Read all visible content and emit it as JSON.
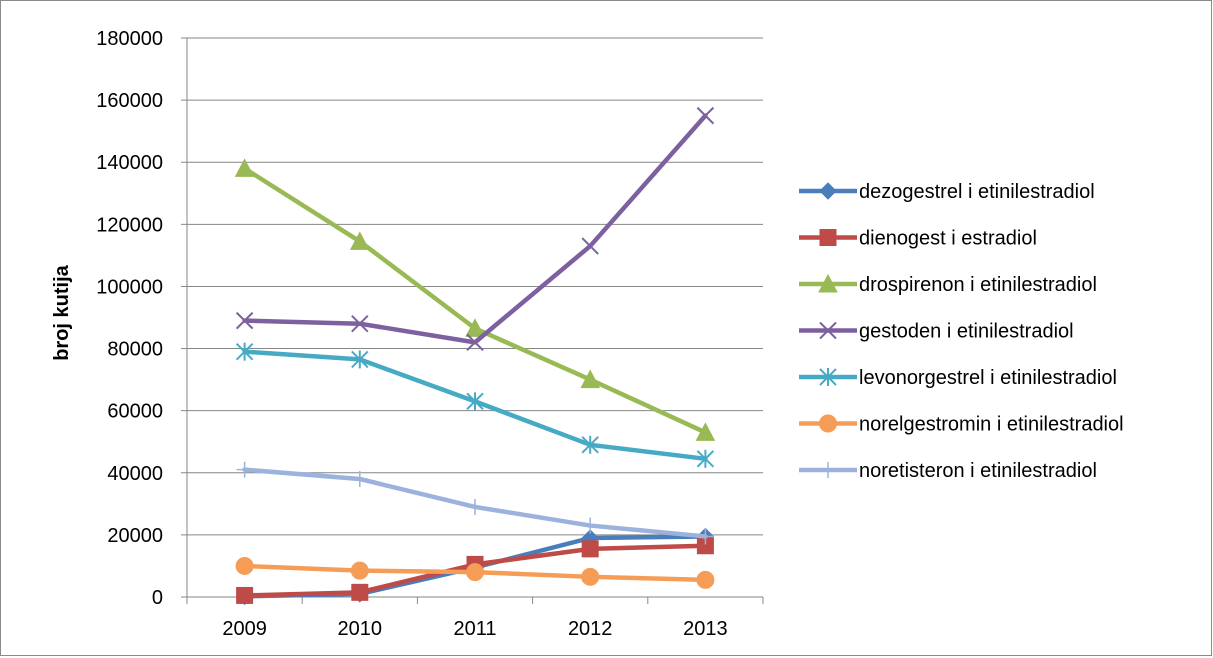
{
  "chart_data": {
    "type": "line",
    "title": "",
    "xlabel": "",
    "ylabel": "broj kutija",
    "categories": [
      "2009",
      "2010",
      "2011",
      "2012",
      "2013"
    ],
    "ylim": [
      0,
      180000
    ],
    "yticks": [
      0,
      20000,
      40000,
      60000,
      80000,
      100000,
      120000,
      140000,
      160000,
      180000
    ],
    "grid": "horizontal",
    "legend_position": "right",
    "series": [
      {
        "name": "dezogestrel i etinilestradiol",
        "color": "#4a7ebb",
        "marker": "diamond",
        "values": [
          200,
          1000,
          9500,
          19000,
          19500
        ]
      },
      {
        "name": "dienogest i estradiol",
        "color": "#be4b48",
        "marker": "square",
        "values": [
          500,
          1500,
          10500,
          15500,
          16500
        ]
      },
      {
        "name": "drospirenon i etinilestradiol",
        "color": "#98b954",
        "marker": "triangle",
        "values": [
          138000,
          114500,
          86500,
          70000,
          53000
        ]
      },
      {
        "name": "gestoden i etinilestradiol",
        "color": "#7d60a0",
        "marker": "x",
        "values": [
          89000,
          88000,
          82000,
          113000,
          155000
        ]
      },
      {
        "name": "levonorgestrel i etinilestradiol",
        "color": "#46aac5",
        "marker": "star",
        "values": [
          79000,
          76500,
          63000,
          49000,
          44500
        ]
      },
      {
        "name": "norelgestromin i etinilestradiol",
        "color": "#f59d56",
        "marker": "circle",
        "values": [
          10000,
          8500,
          8000,
          6500,
          5500
        ]
      },
      {
        "name": "noretisteron i etinilestradiol",
        "color": "#9bb2dc",
        "marker": "plus",
        "values": [
          41000,
          38000,
          29000,
          23000,
          19500
        ]
      }
    ]
  }
}
